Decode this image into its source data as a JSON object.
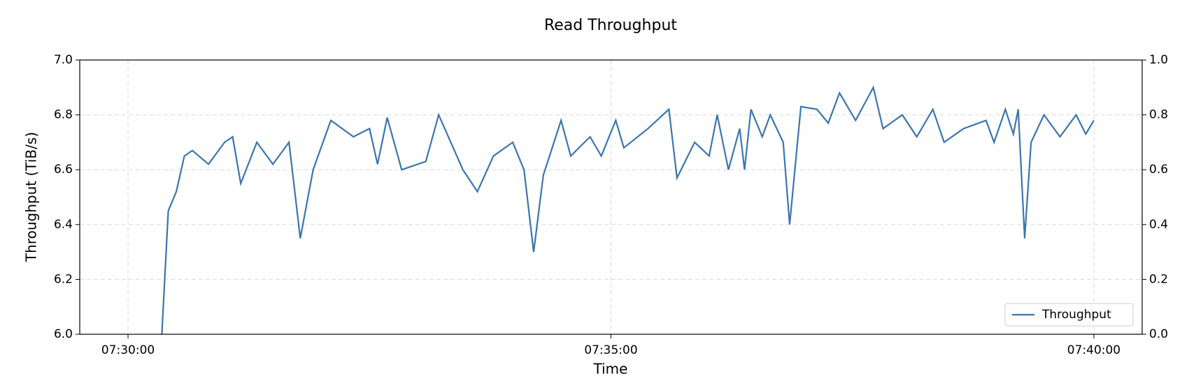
{
  "chart_data": {
    "type": "line",
    "title": "Read Throughput",
    "x_label": "Time",
    "y_label": "Throughput (TiB/s)",
    "x": [
      "07:30:21",
      "07:30:25",
      "07:30:30",
      "07:30:35",
      "07:30:40",
      "07:30:50",
      "07:31:00",
      "07:31:05",
      "07:31:10",
      "07:31:20",
      "07:31:30",
      "07:31:40",
      "07:31:47",
      "07:31:55",
      "07:32:06",
      "07:32:20",
      "07:32:30",
      "07:32:35",
      "07:32:41",
      "07:32:50",
      "07:33:05",
      "07:33:13",
      "07:33:28",
      "07:33:37",
      "07:33:47",
      "07:33:59",
      "07:34:06",
      "07:34:12",
      "07:34:18",
      "07:34:29",
      "07:34:35",
      "07:34:47",
      "07:34:54",
      "07:35:03",
      "07:35:08",
      "07:35:23",
      "07:35:36",
      "07:35:41",
      "07:35:52",
      "07:36:01",
      "07:36:06",
      "07:36:13",
      "07:36:20",
      "07:36:23",
      "07:36:27",
      "07:36:34",
      "07:36:39",
      "07:36:47",
      "07:36:51",
      "07:36:58",
      "07:37:08",
      "07:37:15",
      "07:37:22",
      "07:37:32",
      "07:37:43",
      "07:37:49",
      "07:38:01",
      "07:38:10",
      "07:38:20",
      "07:38:27",
      "07:38:39",
      "07:38:53",
      "07:38:58",
      "07:39:05",
      "07:39:10",
      "07:39:13",
      "07:39:17",
      "07:39:21",
      "07:39:29",
      "07:39:39",
      "07:39:49",
      "07:39:55",
      "07:40:00"
    ],
    "series": [
      {
        "name": "Throughput",
        "color": "#3a75b0",
        "values": [
          6.0,
          6.45,
          6.52,
          6.65,
          6.67,
          6.62,
          6.7,
          6.72,
          6.55,
          6.7,
          6.62,
          6.7,
          6.35,
          6.6,
          6.78,
          6.72,
          6.75,
          6.62,
          6.79,
          6.6,
          6.63,
          6.8,
          6.6,
          6.52,
          6.65,
          6.7,
          6.6,
          6.3,
          6.58,
          6.78,
          6.65,
          6.72,
          6.65,
          6.78,
          6.68,
          6.75,
          6.82,
          6.57,
          6.7,
          6.65,
          6.8,
          6.6,
          6.75,
          6.6,
          6.82,
          6.72,
          6.8,
          6.7,
          6.4,
          6.83,
          6.82,
          6.77,
          6.88,
          6.78,
          6.9,
          6.75,
          6.8,
          6.72,
          6.82,
          6.7,
          6.75,
          6.78,
          6.7,
          6.82,
          6.73,
          6.82,
          6.35,
          6.7,
          6.8,
          6.72,
          6.8,
          6.73,
          6.78
        ]
      }
    ],
    "xlim": [
      "07:29:30",
      "07:40:30"
    ],
    "xticks": [
      "07:30:00",
      "07:35:00",
      "07:40:00"
    ],
    "ylim": [
      6.0,
      7.0
    ],
    "yticks": [
      {
        "value": 6.0,
        "label": "6.0"
      },
      {
        "value": 6.2,
        "label": "6.2"
      },
      {
        "value": 6.4,
        "label": "6.4"
      },
      {
        "value": 6.6,
        "label": "6.6"
      },
      {
        "value": 6.8,
        "label": "6.8"
      },
      {
        "value": 7.0,
        "label": "7.0"
      }
    ],
    "y2lim": [
      0.0,
      1.0
    ],
    "y2ticks": [
      {
        "value": 0.0,
        "label": "0.0"
      },
      {
        "value": 0.2,
        "label": "0.2"
      },
      {
        "value": 0.4,
        "label": "0.4"
      },
      {
        "value": 0.6,
        "label": "0.6"
      },
      {
        "value": 0.8,
        "label": "0.8"
      },
      {
        "value": 1.0,
        "label": "1.0"
      }
    ],
    "grid": true,
    "legend": "lower right"
  }
}
